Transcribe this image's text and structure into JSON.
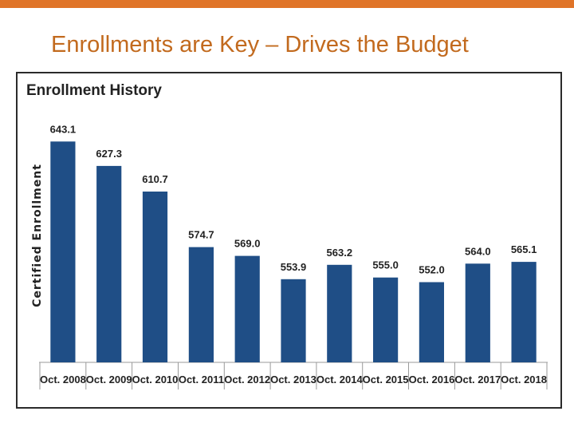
{
  "slide": {
    "title": "Enrollments are Key – Drives the Budget",
    "accent_color": "#e07428",
    "title_color": "#c26a1e"
  },
  "chart_data": {
    "type": "bar",
    "title": "Enrollment History",
    "xlabel": "",
    "ylabel": "Certified Enrollment",
    "categories": [
      "Oct. 2008",
      "Oct. 2009",
      "Oct. 2010",
      "Oct. 2011",
      "Oct. 2012",
      "Oct. 2013",
      "Oct. 2014",
      "Oct. 2015",
      "Oct. 2016",
      "Oct. 2017",
      "Oct. 2018"
    ],
    "values": [
      643.1,
      627.3,
      610.7,
      574.7,
      569.0,
      553.9,
      563.2,
      555.0,
      552.0,
      564.0,
      565.1
    ],
    "labels": [
      "643.1",
      "627.3",
      "610.7",
      "574.7",
      "569.0",
      "553.9",
      "563.2",
      "555.0",
      "552.0",
      "564.0",
      "565.1"
    ],
    "ylim": [
      500,
      650
    ],
    "bar_color": "#1f4e86",
    "grid": false,
    "legend": false
  }
}
